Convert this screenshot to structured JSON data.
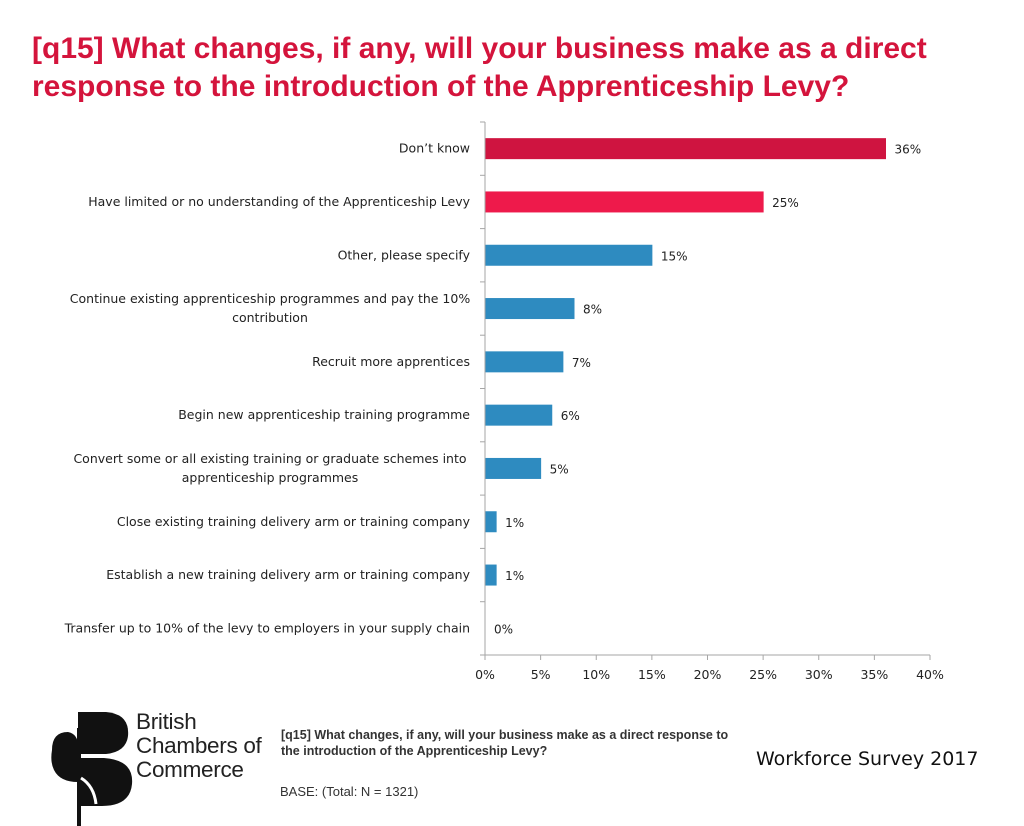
{
  "title": "[q15] What changes, if any, will your business make as a direct response to the introduction of the Apprenticeship Levy?",
  "chart_data": {
    "type": "bar",
    "orientation": "horizontal",
    "categories": [
      "Don’t know",
      "Have limited or no understanding of the Apprenticeship Levy",
      "Other, please specify",
      "Continue existing apprenticeship programmes and pay the 10% contribution",
      "Recruit more apprentices",
      "Begin new apprenticeship training programme",
      "Convert some or all existing training or graduate schemes into apprenticeship programmes",
      "Close existing training delivery arm or training company",
      "Establish a new training delivery arm or training company",
      "Transfer up to 10% of the levy to employers in your supply chain"
    ],
    "category_lines": [
      [
        "Don’t know"
      ],
      [
        "Have limited or no understanding of the Apprenticeship Levy"
      ],
      [
        "Other, please specify"
      ],
      [
        "Continue existing apprenticeship programmes and pay the 10%",
        "contribution"
      ],
      [
        "Recruit more apprentices"
      ],
      [
        "Begin new apprenticeship training programme"
      ],
      [
        "Convert some or all existing training or graduate schemes into",
        "apprenticeship programmes"
      ],
      [
        "Close existing training delivery arm or training company"
      ],
      [
        "Establish a new training delivery arm or training company"
      ],
      [
        "Transfer up to 10% of the levy to employers in your supply chain"
      ]
    ],
    "values": [
      36,
      25,
      15,
      8,
      7,
      6,
      5,
      1,
      1,
      0
    ],
    "value_labels": [
      "36%",
      "25%",
      "15%",
      "8%",
      "7%",
      "6%",
      "5%",
      "1%",
      "1%",
      "0%"
    ],
    "bar_colors": [
      "#cf1440",
      "#ee1a4b",
      "#2e8bc0",
      "#2e8bc0",
      "#2e8bc0",
      "#2e8bc0",
      "#2e8bc0",
      "#2e8bc0",
      "#2e8bc0",
      "#2e8bc0"
    ],
    "xlim": [
      0,
      40
    ],
    "x_ticks": [
      0,
      5,
      10,
      15,
      20,
      25,
      30,
      35,
      40
    ],
    "x_tick_labels": [
      "0%",
      "5%",
      "10%",
      "15%",
      "20%",
      "25%",
      "30%",
      "35%",
      "40%"
    ],
    "unit": "%",
    "grid": false,
    "legend": "none",
    "xlabel": "",
    "ylabel": ""
  },
  "footer": {
    "question": "[q15] What changes, if any, will your business make as a direct response to the introduction of the Apprenticeship Levy?",
    "base": "BASE: (Total: N = 1321)",
    "survey": "Workforce Survey 2017",
    "logo_lines": [
      "British",
      "Chambers of",
      "Commerce"
    ]
  },
  "colors": {
    "title": "#d4143c",
    "axis": "#a6a6a6"
  }
}
